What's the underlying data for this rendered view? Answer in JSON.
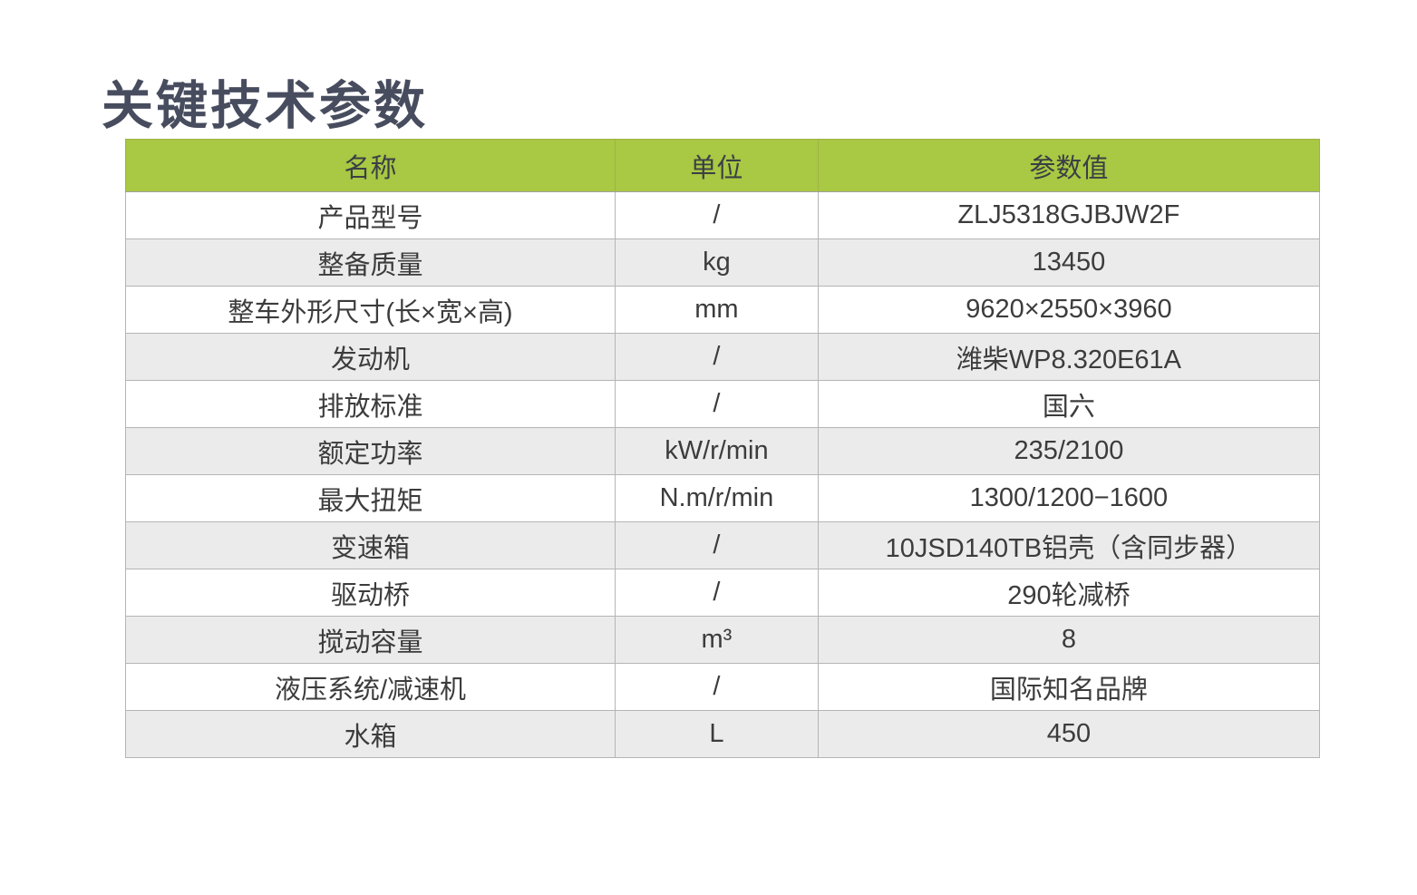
{
  "title": "关键技术参数",
  "colors": {
    "header_bg": "#a9c843",
    "row_stripe": "#ebebeb",
    "border": "#b5b5b5",
    "title_text": "#474c5e",
    "body_text": "#3c3c3c"
  },
  "table": {
    "columns": [
      "名称",
      "单位",
      "参数值"
    ],
    "rows": [
      {
        "name": "产品型号",
        "unit": "/",
        "value": "ZLJ5318GJBJW2F"
      },
      {
        "name": "整备质量",
        "unit": "kg",
        "value": "13450"
      },
      {
        "name": "整车外形尺寸(长×宽×高)",
        "unit": "mm",
        "value": "9620×2550×3960"
      },
      {
        "name": "发动机",
        "unit": "/",
        "value": "潍柴WP8.320E61A"
      },
      {
        "name": "排放标准",
        "unit": "/",
        "value": "国六"
      },
      {
        "name": "额定功率",
        "unit": "kW/r/min",
        "value": "235/2100"
      },
      {
        "name": "最大扭矩",
        "unit": "N.m/r/min",
        "value": "1300/1200−1600"
      },
      {
        "name": "变速箱",
        "unit": "/",
        "value": "10JSD140TB铝壳（含同步器）"
      },
      {
        "name": "驱动桥",
        "unit": "/",
        "value": "290轮减桥"
      },
      {
        "name": "搅动容量",
        "unit": "m³",
        "value": "8"
      },
      {
        "name": "液压系统/减速机",
        "unit": "/",
        "value": "国际知名品牌"
      },
      {
        "name": "水箱",
        "unit": "L",
        "value": "450"
      }
    ]
  }
}
